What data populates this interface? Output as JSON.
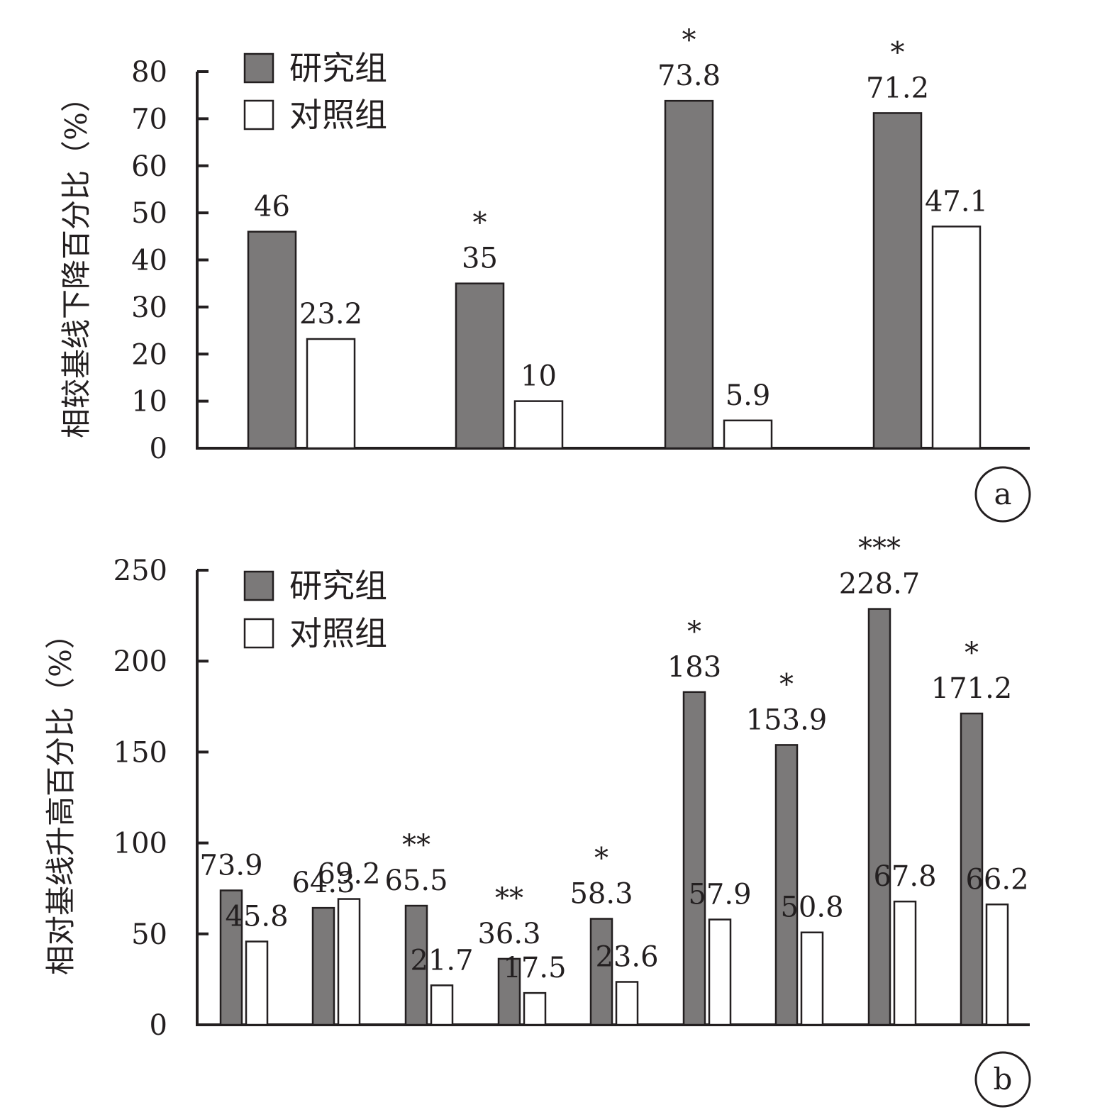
{
  "colors": {
    "study_fill": "#7b7979",
    "control_fill": "#ffffff",
    "stroke": "#231f20"
  },
  "chart_data": [
    {
      "type": "bar",
      "panel": "a",
      "ylabel": "相较基线下降百分比（%）",
      "ylim": [
        0,
        80
      ],
      "yticks": [
        0,
        10,
        20,
        30,
        40,
        50,
        60,
        70,
        80
      ],
      "categories": [
        "",
        "",
        "",
        ""
      ],
      "legend": [
        "研究组",
        "对照组"
      ],
      "legend_position": "top-left",
      "series": [
        {
          "name": "研究组",
          "values": [
            46,
            35,
            73.8,
            71.2
          ]
        },
        {
          "name": "对照组",
          "values": [
            23.2,
            10,
            5.9,
            47.1
          ]
        }
      ],
      "labels": {
        "研究组": [
          "46",
          "35",
          "73.8",
          "71.2"
        ],
        "对照组": [
          "23.2",
          "10",
          "5.9",
          "47.1"
        ]
      },
      "significance": [
        "",
        "*",
        "*",
        "*"
      ]
    },
    {
      "type": "bar",
      "panel": "b",
      "ylabel": "相对基线升高百分比（%）",
      "ylim": [
        0,
        250
      ],
      "yticks": [
        0,
        50,
        100,
        150,
        200,
        250
      ],
      "categories": [
        "",
        "",
        "",
        "",
        "",
        "",
        "",
        "",
        ""
      ],
      "legend": [
        "研究组",
        "对照组"
      ],
      "legend_position": "top-left",
      "series": [
        {
          "name": "研究组",
          "values": [
            73.9,
            64.3,
            65.5,
            36.3,
            58.3,
            183,
            153.9,
            228.7,
            171.2
          ]
        },
        {
          "name": "对照组",
          "values": [
            45.8,
            69.2,
            21.7,
            17.5,
            23.6,
            57.9,
            50.8,
            67.8,
            66.2
          ]
        }
      ],
      "labels": {
        "研究组": [
          "73.9",
          "64.3",
          "65.5",
          "36.3",
          "58.3",
          "183",
          "153.9",
          "228.7",
          "171.2"
        ],
        "对照组": [
          "45.8",
          "69.2",
          "21.7",
          "17.5",
          "23.6",
          "57.9",
          "50.8",
          "67.8",
          "66.2"
        ]
      },
      "significance": [
        "",
        "",
        "**",
        "**",
        "*",
        "*",
        "*",
        "***",
        "*"
      ]
    }
  ]
}
